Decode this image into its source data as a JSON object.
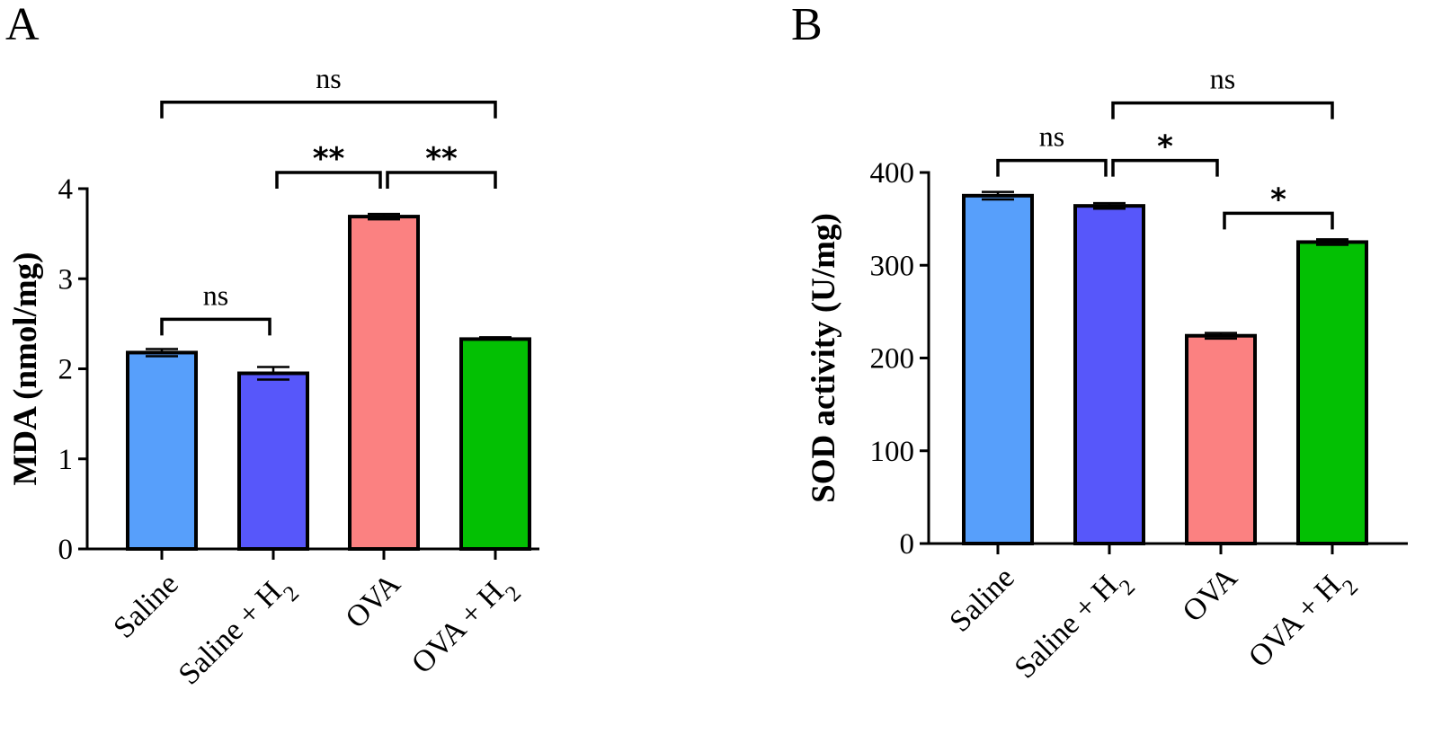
{
  "chart_data": [
    {
      "panel": "A",
      "type": "bar",
      "ylabel": "MDA (nmol/mg)",
      "ylim": [
        0,
        4
      ],
      "yticks": [
        "0",
        "1",
        "2",
        "3",
        "4"
      ],
      "categories": [
        {
          "label": "Saline",
          "sub": ""
        },
        {
          "label": "Saline + H",
          "sub": "2"
        },
        {
          "label": "OVA",
          "sub": ""
        },
        {
          "label": "OVA + H",
          "sub": "2"
        }
      ],
      "values": [
        2.18,
        1.95,
        3.69,
        2.33
      ],
      "errors": [
        0.04,
        0.07,
        0.03,
        0.02
      ],
      "colors": [
        "#579ffb",
        "#5757fa",
        "#fb8181",
        "#03c003"
      ],
      "significance": [
        {
          "from": 0,
          "to": 1,
          "label": "ns",
          "level": 2.55
        },
        {
          "from": 1,
          "to": 2,
          "label": "**",
          "level": 4.18
        },
        {
          "from": 2,
          "to": 3,
          "label": "**",
          "level": 4.18
        },
        {
          "from": 0,
          "to": 3,
          "label": "ns",
          "level": 4.96
        }
      ]
    },
    {
      "panel": "B",
      "type": "bar",
      "ylabel": "SOD activity (U/mg)",
      "ylim": [
        0,
        400
      ],
      "yticks": [
        "0",
        "100",
        "200",
        "300",
        "400"
      ],
      "categories": [
        {
          "label": "Saline",
          "sub": ""
        },
        {
          "label": "Saline + H",
          "sub": "2"
        },
        {
          "label": "OVA",
          "sub": ""
        },
        {
          "label": "OVA + H",
          "sub": "2"
        }
      ],
      "values": [
        375,
        364,
        224,
        325
      ],
      "errors": [
        4,
        3,
        3,
        3
      ],
      "colors": [
        "#579ffb",
        "#5757fa",
        "#fb8181",
        "#03c003"
      ],
      "significance": [
        {
          "from": 0,
          "to": 1,
          "label": "ns",
          "level": 413
        },
        {
          "from": 1,
          "to": 2,
          "label": "*",
          "level": 413
        },
        {
          "from": 2,
          "to": 3,
          "label": "*",
          "level": 356
        },
        {
          "from": 1,
          "to": 3,
          "label": "ns",
          "level": 475
        }
      ]
    }
  ]
}
